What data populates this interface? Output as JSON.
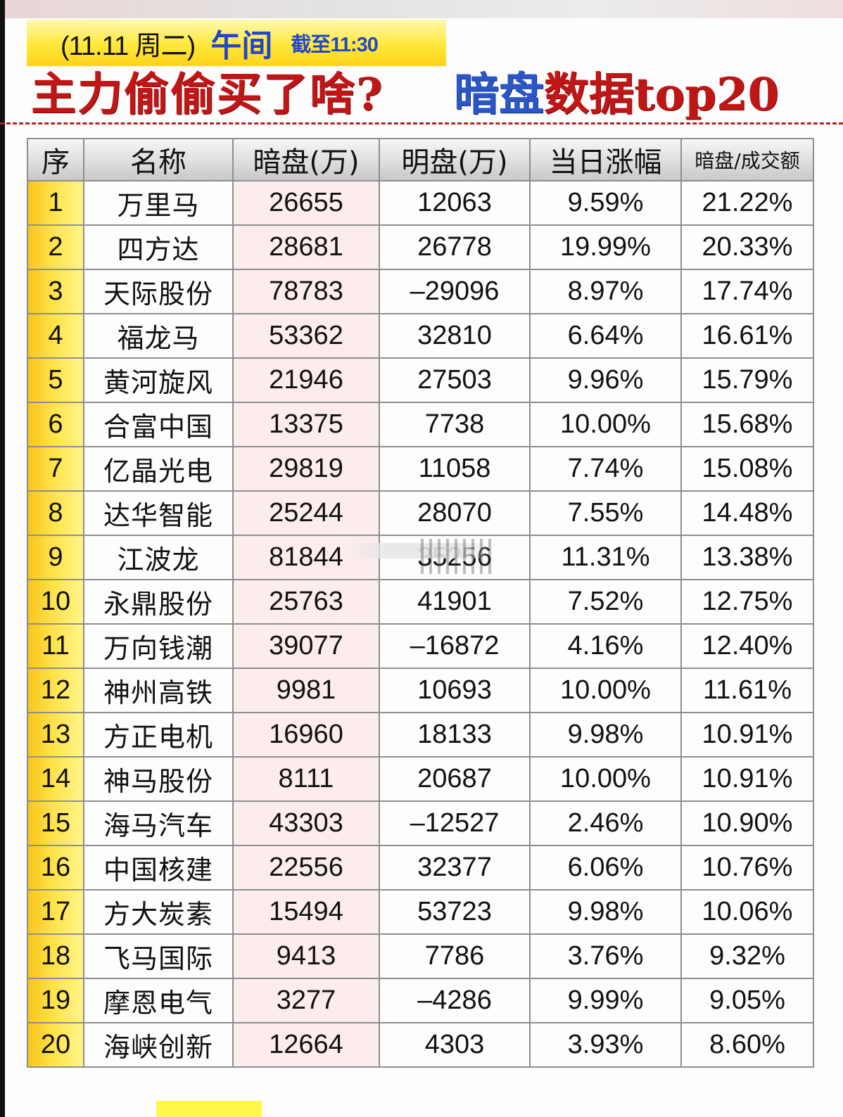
{
  "header": {
    "date": "(11.11 周二)",
    "session": "午间",
    "cutoff": "截至11:30",
    "headline_left": "主力偷偷买了啥?",
    "headline_blue": "暗盘",
    "headline_red": "数据top20"
  },
  "table": {
    "columns": [
      "序",
      "名称",
      "暗盘(万)",
      "明盘(万)",
      "当日涨幅",
      "暗盘/成交额"
    ],
    "rows": [
      {
        "rank": "1",
        "name": "万里马",
        "dark": "26655",
        "lit": "12063",
        "change": "9.59%",
        "ratio": "21.22%"
      },
      {
        "rank": "2",
        "name": "四方达",
        "dark": "28681",
        "lit": "26778",
        "change": "19.99%",
        "ratio": "20.33%"
      },
      {
        "rank": "3",
        "name": "天际股份",
        "dark": "78783",
        "lit": "-29096",
        "change": "8.97%",
        "ratio": "17.74%"
      },
      {
        "rank": "4",
        "name": "福龙马",
        "dark": "53362",
        "lit": "32810",
        "change": "6.64%",
        "ratio": "16.61%"
      },
      {
        "rank": "5",
        "name": "黄河旋风",
        "dark": "21946",
        "lit": "27503",
        "change": "9.96%",
        "ratio": "15.79%"
      },
      {
        "rank": "6",
        "name": "合富中国",
        "dark": "13375",
        "lit": "7738",
        "change": "10.00%",
        "ratio": "15.68%"
      },
      {
        "rank": "7",
        "name": "亿晶光电",
        "dark": "29819",
        "lit": "11058",
        "change": "7.74%",
        "ratio": "15.08%"
      },
      {
        "rank": "8",
        "name": "达华智能",
        "dark": "25244",
        "lit": "28070",
        "change": "7.55%",
        "ratio": "14.48%"
      },
      {
        "rank": "9",
        "name": "江波龙",
        "dark": "81844",
        "lit": "35256",
        "change": "11.31%",
        "ratio": "13.38%"
      },
      {
        "rank": "10",
        "name": "永鼎股份",
        "dark": "25763",
        "lit": "41901",
        "change": "7.52%",
        "ratio": "12.75%"
      },
      {
        "rank": "11",
        "name": "万向钱潮",
        "dark": "39077",
        "lit": "-16872",
        "change": "4.16%",
        "ratio": "12.40%"
      },
      {
        "rank": "12",
        "name": "神州高铁",
        "dark": "9981",
        "lit": "10693",
        "change": "10.00%",
        "ratio": "11.61%"
      },
      {
        "rank": "13",
        "name": "方正电机",
        "dark": "16960",
        "lit": "18133",
        "change": "9.98%",
        "ratio": "10.91%"
      },
      {
        "rank": "14",
        "name": "神马股份",
        "dark": "8111",
        "lit": "20687",
        "change": "10.00%",
        "ratio": "10.91%"
      },
      {
        "rank": "15",
        "name": "海马汽车",
        "dark": "43303",
        "lit": "-12527",
        "change": "2.46%",
        "ratio": "10.90%"
      },
      {
        "rank": "16",
        "name": "中国核建",
        "dark": "22556",
        "lit": "32377",
        "change": "6.06%",
        "ratio": "10.76%"
      },
      {
        "rank": "17",
        "name": "方大炭素",
        "dark": "15494",
        "lit": "53723",
        "change": "9.98%",
        "ratio": "10.06%"
      },
      {
        "rank": "18",
        "name": "飞马国际",
        "dark": "9413",
        "lit": "7786",
        "change": "3.76%",
        "ratio": "9.32%"
      },
      {
        "rank": "19",
        "name": "摩恩电气",
        "dark": "3277",
        "lit": "-4286",
        "change": "9.99%",
        "ratio": "9.05%"
      },
      {
        "rank": "20",
        "name": "海峡创新",
        "dark": "12664",
        "lit": "4303",
        "change": "3.93%",
        "ratio": "8.60%"
      }
    ]
  },
  "colors": {
    "title_red": "#c11616",
    "title_blue": "#2a56c8",
    "name_red": "#c81c1c",
    "positive_red": "#d0202a",
    "negative_green": "#2f8a3c",
    "rank_blue": "#2d5fa8",
    "banner_yellow": "#ffe83a",
    "dark_col_pink": "#fcecec"
  }
}
